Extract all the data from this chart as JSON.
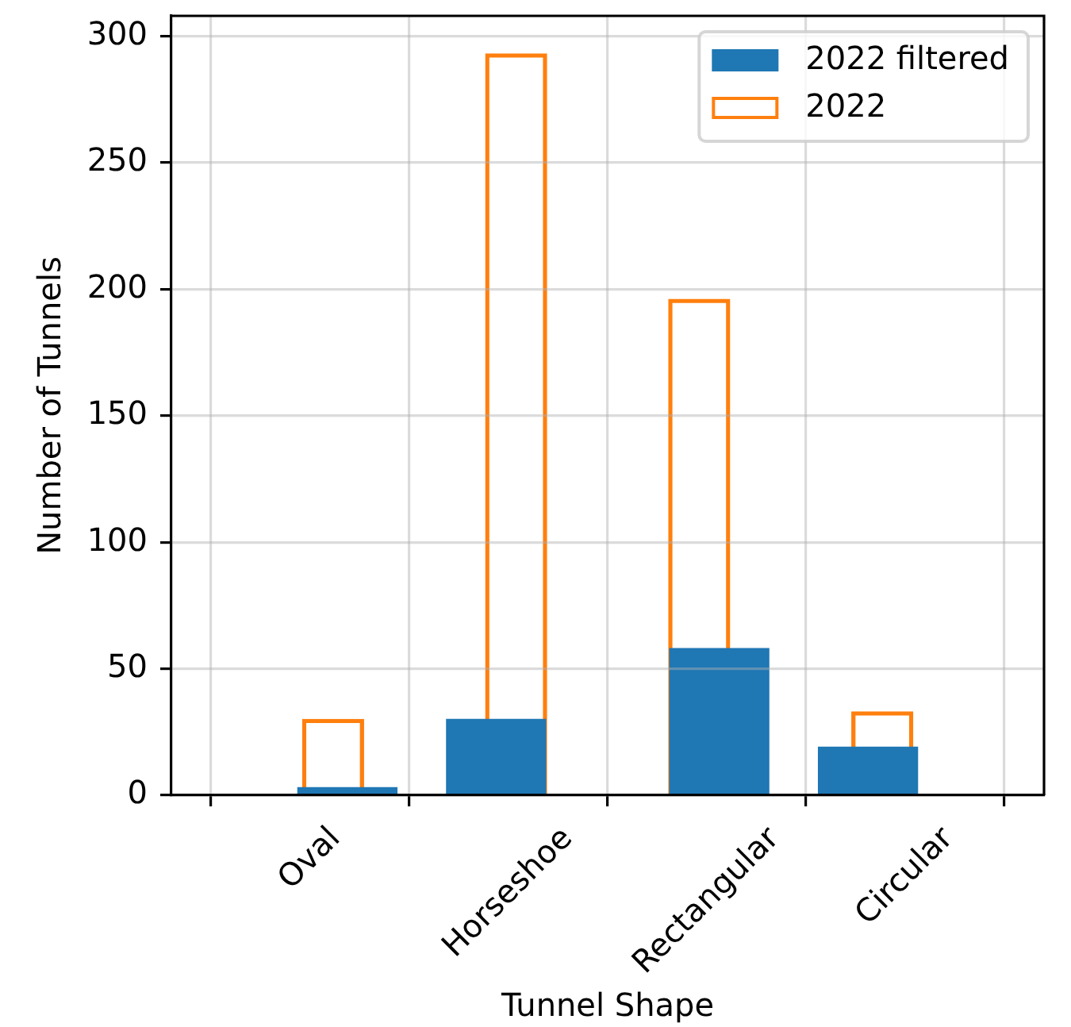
{
  "chart_data": {
    "type": "bar",
    "xlabel": "Tunnel Shape",
    "ylabel": "Number of Tunnels",
    "categories": [
      "Oval",
      "Horseshoe",
      "Rectangular",
      "Circular"
    ],
    "ylim": [
      0,
      308
    ],
    "yticks": [
      0,
      50,
      100,
      150,
      200,
      250,
      300
    ],
    "series": [
      {
        "name": "2022 filtered",
        "color": "#1f77b4",
        "values": [
          3,
          30,
          58,
          19
        ]
      },
      {
        "name": "2022",
        "color": "#ff7f0e",
        "values": [
          30,
          293,
          196,
          33
        ]
      }
    ],
    "grid": true,
    "legend": "top right"
  }
}
